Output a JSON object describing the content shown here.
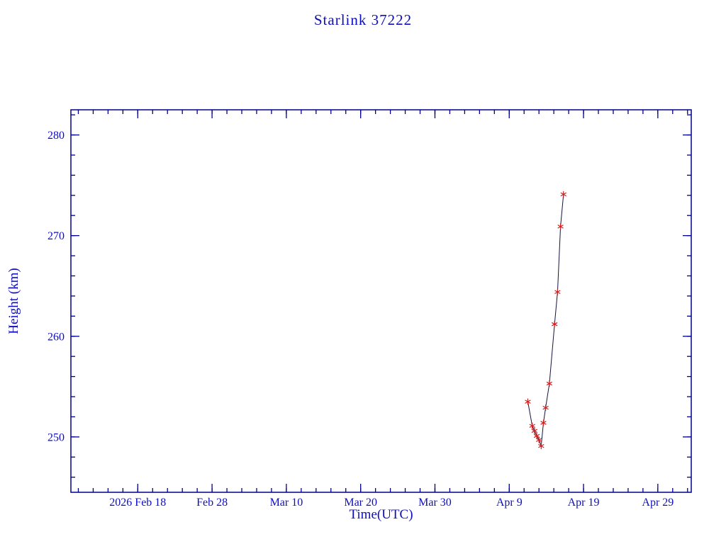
{
  "colors": {
    "background": "#ffffff",
    "axis": "#00008c",
    "text": "#0d0dc0",
    "line": "#14143f",
    "marker": "#cf1f1f"
  },
  "chart_data": {
    "type": "line",
    "title": "Starlink 37222",
    "xlabel": "Time(UTC)",
    "ylabel": "Height (km)",
    "grid": false,
    "legend": false,
    "x_axis": {
      "unit": "days since 2026 Feb 9",
      "range": [
        0,
        83.5
      ],
      "major_ticks": [
        {
          "day": 9,
          "label": "2026 Feb 18"
        },
        {
          "day": 19,
          "label": "Feb 28"
        },
        {
          "day": 29,
          "label": "Mar 10"
        },
        {
          "day": 39,
          "label": "Mar 20"
        },
        {
          "day": 49,
          "label": "Mar 30"
        },
        {
          "day": 59,
          "label": "Apr 9"
        },
        {
          "day": 69,
          "label": "Apr 19"
        },
        {
          "day": 79,
          "label": "Apr 29"
        }
      ],
      "minor_tick_step": 2
    },
    "y_axis": {
      "range": [
        244.5,
        282.5
      ],
      "major_ticks": [
        250,
        260,
        270,
        280
      ],
      "minor_tick_step": 2
    },
    "series": [
      {
        "name": "height",
        "marker": "asterisk",
        "points": [
          {
            "day": 61.5,
            "height": 253.5
          },
          {
            "day": 62.1,
            "height": 251.1
          },
          {
            "day": 62.4,
            "height": 250.6
          },
          {
            "day": 62.7,
            "height": 250.1
          },
          {
            "day": 63.0,
            "height": 249.7
          },
          {
            "day": 63.3,
            "height": 249.1
          },
          {
            "day": 63.6,
            "height": 251.4
          },
          {
            "day": 63.9,
            "height": 252.9
          },
          {
            "day": 64.4,
            "height": 255.3
          },
          {
            "day": 65.1,
            "height": 261.2
          },
          {
            "day": 65.5,
            "height": 264.4
          },
          {
            "day": 65.9,
            "height": 270.9
          },
          {
            "day": 66.3,
            "height": 274.1
          }
        ]
      }
    ]
  }
}
